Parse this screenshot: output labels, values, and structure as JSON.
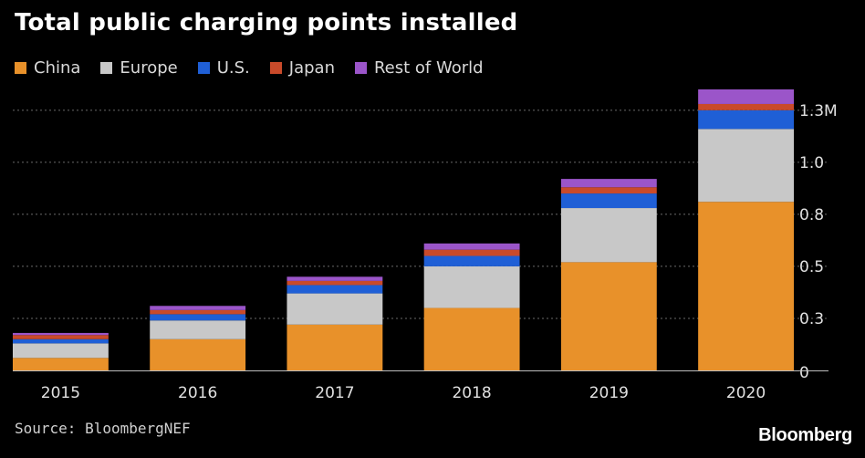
{
  "chart_data": {
    "type": "bar",
    "stacked": true,
    "title": "Total public charging points installed",
    "categories": [
      "2015",
      "2016",
      "2017",
      "2018",
      "2019",
      "2020"
    ],
    "series": [
      {
        "name": "China",
        "color": "#e8912a",
        "values": [
          0.06,
          0.15,
          0.22,
          0.3,
          0.52,
          0.81
        ]
      },
      {
        "name": "Europe",
        "color": "#c8c8c8",
        "values": [
          0.07,
          0.09,
          0.15,
          0.2,
          0.26,
          0.35
        ]
      },
      {
        "name": "U.S.",
        "color": "#1f5fd6",
        "values": [
          0.02,
          0.03,
          0.04,
          0.05,
          0.07,
          0.09
        ]
      },
      {
        "name": "Japan",
        "color": "#c94a2a",
        "values": [
          0.02,
          0.02,
          0.02,
          0.03,
          0.03,
          0.03
        ]
      },
      {
        "name": "Rest of World",
        "color": "#9b55c9",
        "values": [
          0.01,
          0.02,
          0.02,
          0.03,
          0.04,
          0.07
        ]
      }
    ],
    "ylim": [
      0,
      1.35
    ],
    "yticks": [
      0,
      0.25,
      0.5,
      0.75,
      1.0,
      1.25
    ],
    "ytick_labels": [
      "0",
      "0.3",
      "0.5",
      "0.8",
      "1.0",
      "1.3M"
    ],
    "grid": true,
    "xlabel": "",
    "ylabel": "",
    "legend": "top-left"
  },
  "source": "Source: BloombergNEF",
  "brand": "Bloomberg"
}
